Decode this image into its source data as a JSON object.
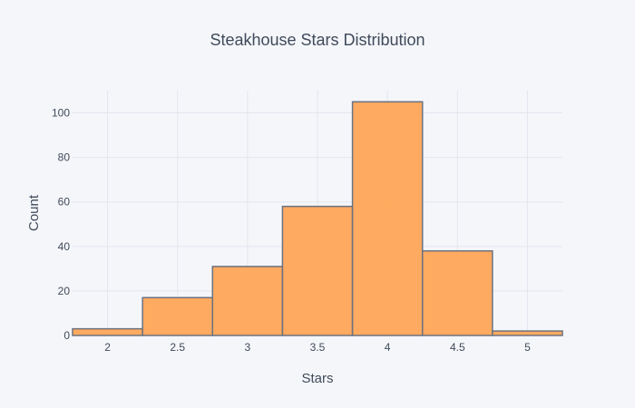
{
  "chart_data": {
    "type": "bar",
    "subtype": "histogram",
    "title": "Steakhouse Stars Distribution",
    "xlabel": "Stars",
    "ylabel": "Count",
    "bins": [
      {
        "start": 1.75,
        "end": 2.25,
        "count": 3
      },
      {
        "start": 2.25,
        "end": 2.75,
        "count": 17
      },
      {
        "start": 2.75,
        "end": 3.25,
        "count": 31
      },
      {
        "start": 3.25,
        "end": 3.75,
        "count": 58
      },
      {
        "start": 3.75,
        "end": 4.25,
        "count": 105
      },
      {
        "start": 4.25,
        "end": 4.75,
        "count": 38
      },
      {
        "start": 4.75,
        "end": 5.25,
        "count": 2
      }
    ],
    "xlim": [
      1.75,
      5.25
    ],
    "ylim": [
      0,
      110
    ],
    "x_ticks": [
      "2",
      "2.5",
      "3",
      "3.5",
      "4",
      "4.5",
      "5"
    ],
    "y_ticks": [
      "0",
      "20",
      "40",
      "60",
      "80",
      "100"
    ],
    "grid": true,
    "legend": "none",
    "colors": {
      "bar_fill": "#ffa24f",
      "bar_stroke": "#6b7280",
      "grid": "#e3e6ee",
      "text": "#3f4a5a",
      "background": "#f5f6fa"
    }
  }
}
